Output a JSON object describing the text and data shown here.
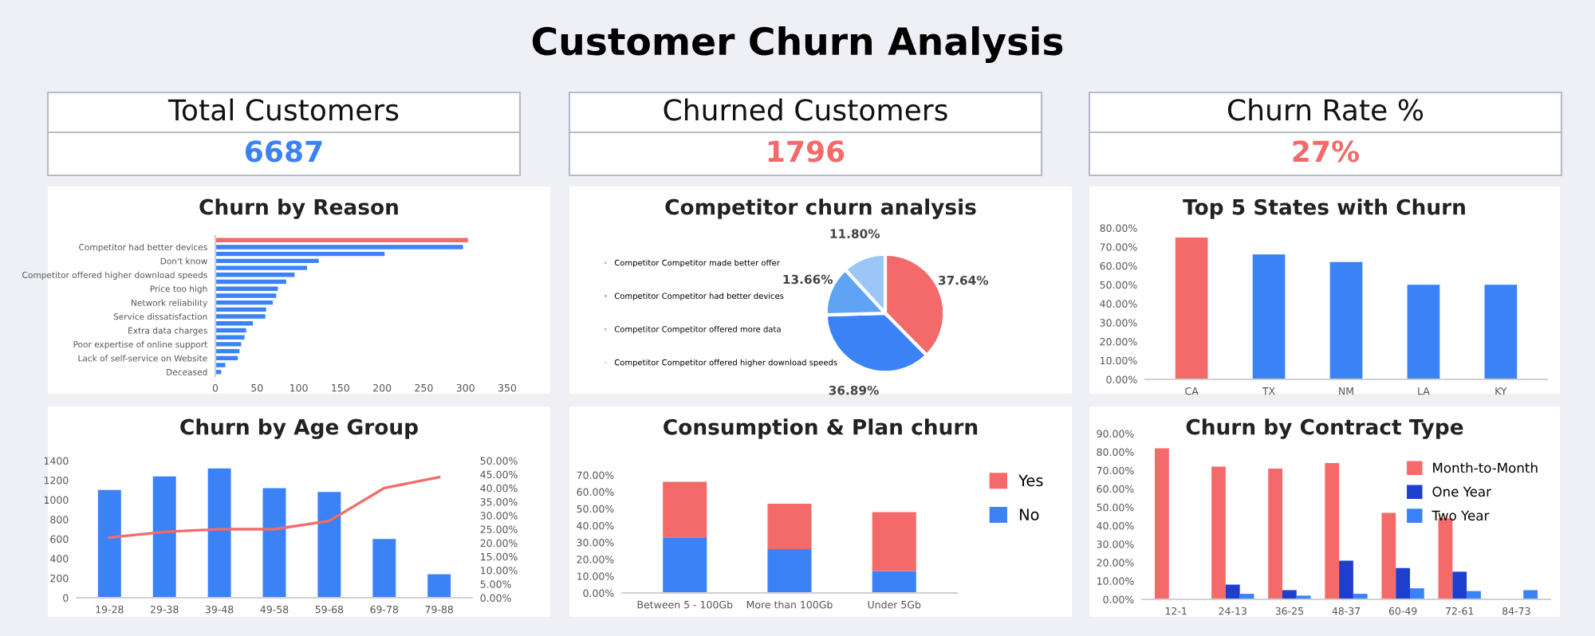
{
  "chart_data": [
    {
      "type": "other",
      "title": "Customer Churn Analysis"
    },
    {
      "type": "other",
      "title": "Total Customers",
      "annotations": [
        "6687"
      ],
      "color": "#3b82f6"
    },
    {
      "type": "other",
      "title": "Churned Customers",
      "annotations": [
        "1796"
      ],
      "color": "#f46a6a"
    },
    {
      "type": "other",
      "title": "Churn Rate %",
      "annotations": [
        "27%"
      ],
      "color": "#f46a6a"
    },
    {
      "type": "bar",
      "title": "Churn by Reason",
      "orientation": "horizontal",
      "categories": [
        null,
        "Competitor had better devices",
        null,
        "Don't know",
        null,
        "Competitor offered higher download speeds",
        null,
        "Price too high",
        null,
        "Network reliability",
        null,
        "Service dissatisfaction",
        null,
        "Extra data charges",
        null,
        "Poor expertise of online support",
        null,
        "Lack of self-service on Website",
        null,
        "Deceased"
      ],
      "values": [
        303,
        297,
        203,
        124,
        110,
        95,
        85,
        75,
        73,
        69,
        61,
        60,
        45,
        37,
        35,
        31,
        29,
        27,
        12,
        7
      ],
      "colors": [
        "#f46a6a",
        "#3b82f6",
        "#3b82f6",
        "#3b82f6",
        "#3b82f6",
        "#3b82f6",
        "#3b82f6",
        "#3b82f6",
        "#3b82f6",
        "#3b82f6",
        "#3b82f6",
        "#3b82f6",
        "#3b82f6",
        "#3b82f6",
        "#3b82f6",
        "#3b82f6",
        "#3b82f6",
        "#3b82f6",
        "#3b82f6",
        "#3b82f6"
      ],
      "xlim": [
        0,
        350
      ],
      "xticks": [
        0,
        50,
        100,
        150,
        200,
        250,
        300,
        350
      ]
    },
    {
      "type": "pie",
      "title": "Competitor churn analysis",
      "categories": [
        "Competitor Competitor made better offer",
        "Competitor Competitor had better devices",
        "Competitor Competitor offered more data",
        "Competitor Competitor offered higher download speeds"
      ],
      "values": [
        37.64,
        36.89,
        13.66,
        11.8
      ],
      "value_labels": [
        "37.64%",
        "36.89%",
        "13.66%",
        "11.80%"
      ],
      "colors": [
        "#f46a6a",
        "#3b82f6",
        "#5fa3f5",
        "#9cc6f7"
      ],
      "legend": "left"
    },
    {
      "type": "bar",
      "title": "Top 5 States with Churn",
      "categories": [
        "CA",
        "TX",
        "NM",
        "LA",
        "KY"
      ],
      "values": [
        75,
        66,
        62,
        50,
        50
      ],
      "colors": [
        "#f46a6a",
        "#3b82f6",
        "#3b82f6",
        "#3b82f6",
        "#3b82f6"
      ],
      "ylim": [
        0,
        80
      ],
      "yticks": [
        {
          "value": 0,
          "label": "0.00%"
        },
        {
          "value": 10,
          "label": "10.00%"
        },
        {
          "value": 20,
          "label": "20.00%"
        },
        {
          "value": 30,
          "label": "30.00%"
        },
        {
          "value": 40,
          "label": "40.00%"
        },
        {
          "value": 50,
          "label": "50.00%"
        },
        {
          "value": 60,
          "label": "60.00%"
        },
        {
          "value": 70,
          "label": "70.00%"
        },
        {
          "value": 80,
          "label": "80.00%"
        }
      ]
    },
    {
      "type": "bar",
      "title": "Churn by Age Group",
      "categories": [
        "19-28",
        "29-38",
        "39-48",
        "49-58",
        "59-68",
        "69-78",
        "79-88"
      ],
      "series": [
        {
          "type": "bar",
          "color": "#3b82f6",
          "values": [
            1100,
            1240,
            1320,
            1120,
            1080,
            600,
            240
          ]
        },
        {
          "type": "line",
          "axis": "y2",
          "color": "#f46a6a",
          "values": [
            22,
            24,
            25,
            25,
            28,
            40,
            44
          ]
        }
      ],
      "ylim": [
        0,
        1400
      ],
      "yticks": [
        0,
        200,
        400,
        600,
        800,
        1000,
        1200,
        1400
      ],
      "y2lim": [
        0,
        50
      ],
      "y2ticks": [
        {
          "value": 0,
          "label": "0.00%"
        },
        {
          "value": 5,
          "label": "5.00%"
        },
        {
          "value": 10,
          "label": "10.00%"
        },
        {
          "value": 15,
          "label": "15.00%"
        },
        {
          "value": 20,
          "label": "20.00%"
        },
        {
          "value": 25,
          "label": "25.00%"
        },
        {
          "value": 30,
          "label": "30.00%"
        },
        {
          "value": 35,
          "label": "35.00%"
        },
        {
          "value": 40,
          "label": "40.00%"
        },
        {
          "value": 45,
          "label": "45.00%"
        },
        {
          "value": 50,
          "label": "50.00%"
        }
      ]
    },
    {
      "type": "bar",
      "title": "Consumption & Plan churn",
      "stacked": true,
      "categories": [
        "Between 5 - 100Gb",
        "More than 100Gb",
        "Under 5Gb"
      ],
      "series": [
        {
          "name": "No",
          "color": "#3b82f6",
          "values": [
            33,
            26,
            13
          ]
        },
        {
          "name": "Yes",
          "color": "#f46a6a",
          "values": [
            33,
            27,
            35
          ]
        }
      ],
      "ylim": [
        0,
        70
      ],
      "yticks": [
        {
          "value": 0,
          "label": "0.00%"
        },
        {
          "value": 10,
          "label": "10.00%"
        },
        {
          "value": 20,
          "label": "20.00%"
        },
        {
          "value": 30,
          "label": "30.00%"
        },
        {
          "value": 40,
          "label": "40.00%"
        },
        {
          "value": 50,
          "label": "50.00%"
        },
        {
          "value": 60,
          "label": "60.00%"
        },
        {
          "value": 70,
          "label": "70.00%"
        }
      ],
      "legend": "right"
    },
    {
      "type": "bar",
      "title": "Churn by Contract Type",
      "categories": [
        "12-1",
        "24-13",
        "36-25",
        "48-37",
        "60-49",
        "72-61",
        "84-73"
      ],
      "series": [
        {
          "name": "Month-to-Month",
          "color": "#f46a6a",
          "values": [
            82,
            72,
            71,
            74,
            47,
            44,
            null
          ]
        },
        {
          "name": "One Year",
          "color": "#1d3fcf",
          "values": [
            null,
            8,
            5,
            21,
            17,
            15,
            null
          ]
        },
        {
          "name": "Two Year",
          "color": "#3b82f6",
          "values": [
            null,
            3,
            2,
            3,
            6,
            4.5,
            5
          ]
        }
      ],
      "ylim": [
        0,
        90
      ],
      "yticks": [
        {
          "value": 0,
          "label": "0.00%"
        },
        {
          "value": 10,
          "label": "10.00%"
        },
        {
          "value": 20,
          "label": "20.00%"
        },
        {
          "value": 30,
          "label": "30.00%"
        },
        {
          "value": 40,
          "label": "40.00%"
        },
        {
          "value": 50,
          "label": "50.00%"
        },
        {
          "value": 60,
          "label": "60.00%"
        },
        {
          "value": 70,
          "label": "70.00%"
        },
        {
          "value": 80,
          "label": "80.00%"
        },
        {
          "value": 90,
          "label": "90.00%"
        }
      ],
      "legend": "right"
    }
  ]
}
